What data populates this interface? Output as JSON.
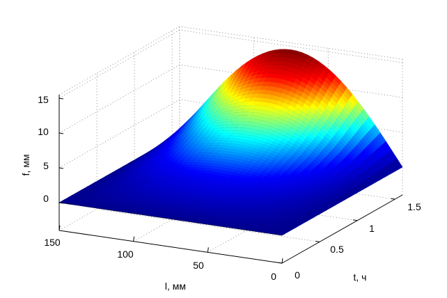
{
  "chart_data": {
    "type": "surface",
    "title": "",
    "xlabel": "l, мм",
    "ylabel": "t, ч",
    "zlabel": "f, мм",
    "x_ticks": [
      "0",
      "50",
      "100",
      "150"
    ],
    "y_ticks": [
      "0",
      "0.5",
      "1",
      "1.5"
    ],
    "z_ticks": [
      "0",
      "5",
      "10",
      "15"
    ],
    "xlim": [
      0,
      150
    ],
    "ylim": [
      0,
      1.6
    ],
    "zlim": [
      -4,
      15.5
    ],
    "grid": true,
    "colormap": "jet",
    "colormap_stops": [
      "#00008f",
      "#0000ff",
      "#00ffff",
      "#ffff00",
      "#ff0000",
      "#800000"
    ],
    "surface": {
      "formula": "f = A(t) * sin(pi * l / 150)",
      "amplitude_by_t": {
        "t": [
          0,
          0.5,
          1.0,
          1.2,
          1.35,
          1.5,
          1.6
        ],
        "A": [
          0,
          2.5,
          6.2,
          8.3,
          10.5,
          13.0,
          14.5
        ]
      },
      "l_samples": 41,
      "t_samples": 60
    }
  }
}
